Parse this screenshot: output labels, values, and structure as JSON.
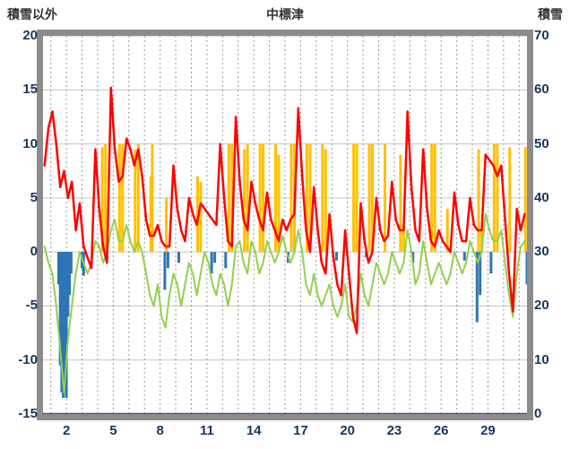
{
  "header": {
    "left_axis_title": "積雪以外",
    "title": "中標津",
    "right_axis_title": "積雪"
  },
  "chart_data": {
    "type": "line",
    "title": "中標津",
    "left_axis": {
      "label": "積雪以外",
      "min": -15,
      "max": 20,
      "ticks": [
        20,
        15,
        10,
        5,
        0,
        -5,
        -10,
        -15
      ]
    },
    "right_axis": {
      "label": "積雪",
      "min": 0,
      "max": 70,
      "ticks": [
        70,
        60,
        50,
        40,
        30,
        20,
        10,
        0
      ]
    },
    "x_axis": {
      "min": 0.5,
      "max": 31.5,
      "unit": "day",
      "tick_labels": [
        2,
        5,
        8,
        11,
        14,
        17,
        20,
        23,
        26,
        29
      ],
      "grid_every_day": true
    },
    "colors": {
      "red_line": "#FF0000",
      "green_line": "#92D050",
      "blue_bars": "#2E75B6",
      "orange_bars": "#FFC000",
      "purple_line": "#7030A0",
      "frame": "#8C8C8C",
      "grid_h": "#C6C6C6",
      "grid_v": "#9A9A9A",
      "axis_text": "#17375E"
    },
    "series": [
      {
        "name": "orange-bars",
        "type": "bar",
        "axis": "left",
        "color": "#FFC000",
        "points": [
          [
            4.3,
            9.7
          ],
          [
            4.5,
            10
          ],
          [
            5.4,
            10
          ],
          [
            5.6,
            10
          ],
          [
            6.4,
            9.5
          ],
          [
            6.6,
            10
          ],
          [
            7.4,
            7
          ],
          [
            7.5,
            10
          ],
          [
            8.4,
            5
          ],
          [
            10.4,
            7
          ],
          [
            10.6,
            6.5
          ],
          [
            12.4,
            10
          ],
          [
            12.6,
            10
          ],
          [
            13.4,
            9.5
          ],
          [
            13.6,
            10
          ],
          [
            14.4,
            10
          ],
          [
            14.6,
            10
          ],
          [
            15.4,
            10
          ],
          [
            15.6,
            9
          ],
          [
            16.4,
            10
          ],
          [
            16.6,
            10
          ],
          [
            17.4,
            10
          ],
          [
            17.6,
            10
          ],
          [
            18.4,
            10
          ],
          [
            18.6,
            9.5
          ],
          [
            20.4,
            10
          ],
          [
            20.6,
            10
          ],
          [
            21.4,
            10
          ],
          [
            21.6,
            10
          ],
          [
            22.4,
            10
          ],
          [
            23.4,
            9
          ],
          [
            23.6,
            2.5
          ],
          [
            25.4,
            10
          ],
          [
            25.6,
            10
          ],
          [
            26.4,
            4
          ],
          [
            28.4,
            9.5
          ],
          [
            28.6,
            2
          ],
          [
            29.4,
            10
          ],
          [
            29.6,
            10
          ],
          [
            30.4,
            9.7
          ],
          [
            31.4,
            9.7
          ]
        ]
      },
      {
        "name": "blue-bars",
        "type": "bar",
        "axis": "left",
        "color": "#2E75B6",
        "points": [
          [
            1.5,
            -3
          ],
          [
            1.6,
            -10.5
          ],
          [
            1.7,
            -13
          ],
          [
            1.8,
            -13.5
          ],
          [
            1.9,
            -12
          ],
          [
            2.0,
            -13.5
          ],
          [
            2.1,
            -6
          ],
          [
            2.2,
            -4
          ],
          [
            2.3,
            -2
          ],
          [
            3.0,
            -1.5
          ],
          [
            3.1,
            -2.2
          ],
          [
            8.3,
            -3.5
          ],
          [
            8.5,
            -1.5
          ],
          [
            9.2,
            -1
          ],
          [
            11.3,
            -2
          ],
          [
            11.5,
            -1
          ],
          [
            12.2,
            -1.5
          ],
          [
            16.2,
            -1
          ],
          [
            19.3,
            -0.8
          ],
          [
            21.2,
            -0.5
          ],
          [
            24.2,
            -1
          ],
          [
            27.5,
            -0.8
          ],
          [
            28.3,
            -6.5
          ],
          [
            28.5,
            -4
          ],
          [
            29.2,
            -2
          ],
          [
            31.5,
            -3
          ]
        ]
      },
      {
        "name": "green-line",
        "type": "line",
        "axis": "left",
        "color": "#92D050",
        "width": 2,
        "x_start": 0.6,
        "x_step": 0.25,
        "values": [
          0.5,
          -1,
          -2,
          -5,
          -9,
          -13,
          -8,
          -5,
          -2,
          0,
          -1,
          -2,
          -1,
          1,
          0.5,
          -1,
          0,
          2,
          3,
          1,
          1,
          2.5,
          1,
          0,
          1,
          0,
          -2,
          -4,
          -5,
          -3,
          -6,
          -7,
          -4,
          -2,
          -3,
          -5,
          -3,
          -1,
          -2,
          -4,
          -2,
          0,
          -1,
          -3,
          -4,
          -2,
          -3,
          -5,
          -3,
          0.5,
          1,
          -1,
          -2,
          1,
          0,
          -2,
          -1,
          1,
          0,
          -1,
          0,
          1.5,
          0,
          -1,
          0,
          2,
          0,
          -3,
          -4,
          -2,
          -4,
          -5,
          -4,
          -3,
          -5,
          -6,
          -5,
          -3,
          -6,
          -6.5,
          -5,
          -2,
          -4,
          -5,
          -3,
          -1,
          -2,
          -3,
          -2,
          0,
          -1,
          -2,
          -1,
          2,
          0,
          -3,
          -2,
          1,
          -1,
          -3,
          -2,
          -1,
          -2,
          -3,
          -2,
          0,
          -1,
          -2,
          -1,
          1,
          0,
          -1,
          0,
          3.5,
          2,
          1,
          1,
          2,
          -1,
          -4,
          -6,
          -2,
          0.5,
          1
        ]
      },
      {
        "name": "red-line",
        "type": "line",
        "axis": "left",
        "color": "#FF0000",
        "width": 2.5,
        "x_start": 0.6,
        "x_step": 0.25,
        "values": [
          8,
          11.5,
          13,
          10,
          6,
          7.5,
          5,
          6.5,
          2,
          4.5,
          0.5,
          -0.5,
          -1.5,
          9.5,
          4,
          0.5,
          -1,
          15.2,
          9.5,
          6.5,
          7,
          10.5,
          9.5,
          8,
          9.5,
          7,
          3,
          1.5,
          1.5,
          2.5,
          1,
          0.5,
          0.5,
          8,
          4,
          2,
          1,
          5,
          3.5,
          2.5,
          4.5,
          4,
          3.5,
          3,
          2.5,
          10,
          5,
          1,
          0.5,
          12.5,
          6.5,
          3,
          2,
          6.5,
          4.5,
          3,
          2,
          5.5,
          3,
          2,
          1,
          3,
          2,
          3,
          3.5,
          13.3,
          7,
          2,
          0,
          6,
          2,
          -1,
          -2,
          3.5,
          -0.5,
          -3,
          -4,
          2,
          -2,
          -6,
          -7.5,
          4.5,
          1,
          -1,
          0,
          5,
          2,
          1,
          1.5,
          6.5,
          3,
          2,
          2,
          13,
          6,
          2,
          1,
          9.5,
          4,
          1,
          0.5,
          2,
          1,
          0.5,
          0,
          5.5,
          2.5,
          1,
          1,
          5,
          2.5,
          2,
          2,
          9,
          8.5,
          8,
          7,
          8,
          3,
          -2,
          -5.5,
          4,
          2,
          3.5
        ]
      },
      {
        "name": "purple-snow-line",
        "type": "line",
        "axis": "right",
        "color": "#7030A0",
        "width": 2.5,
        "points": [
          [
            0.5,
            0
          ],
          [
            31.5,
            0
          ]
        ]
      }
    ]
  }
}
